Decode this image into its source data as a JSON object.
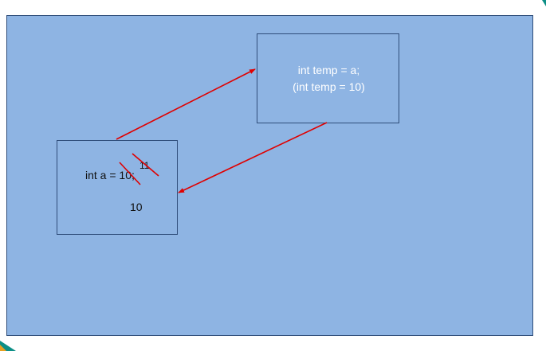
{
  "diagram": {
    "temp_box": {
      "line1": "int temp = a;",
      "line2": "(int temp = 10)"
    },
    "a_box": {
      "declaration": "int a = 10;",
      "overwritten_value": "11",
      "restored_value": "10"
    }
  },
  "colors": {
    "canvas_fill": "#8eb4e3",
    "box_border": "#2f4d7a",
    "arrow": "#e00000",
    "strike": "#e00000",
    "temp_text": "#ffffff",
    "a_text": "#111111",
    "corner_accent": "#0d8f86"
  }
}
